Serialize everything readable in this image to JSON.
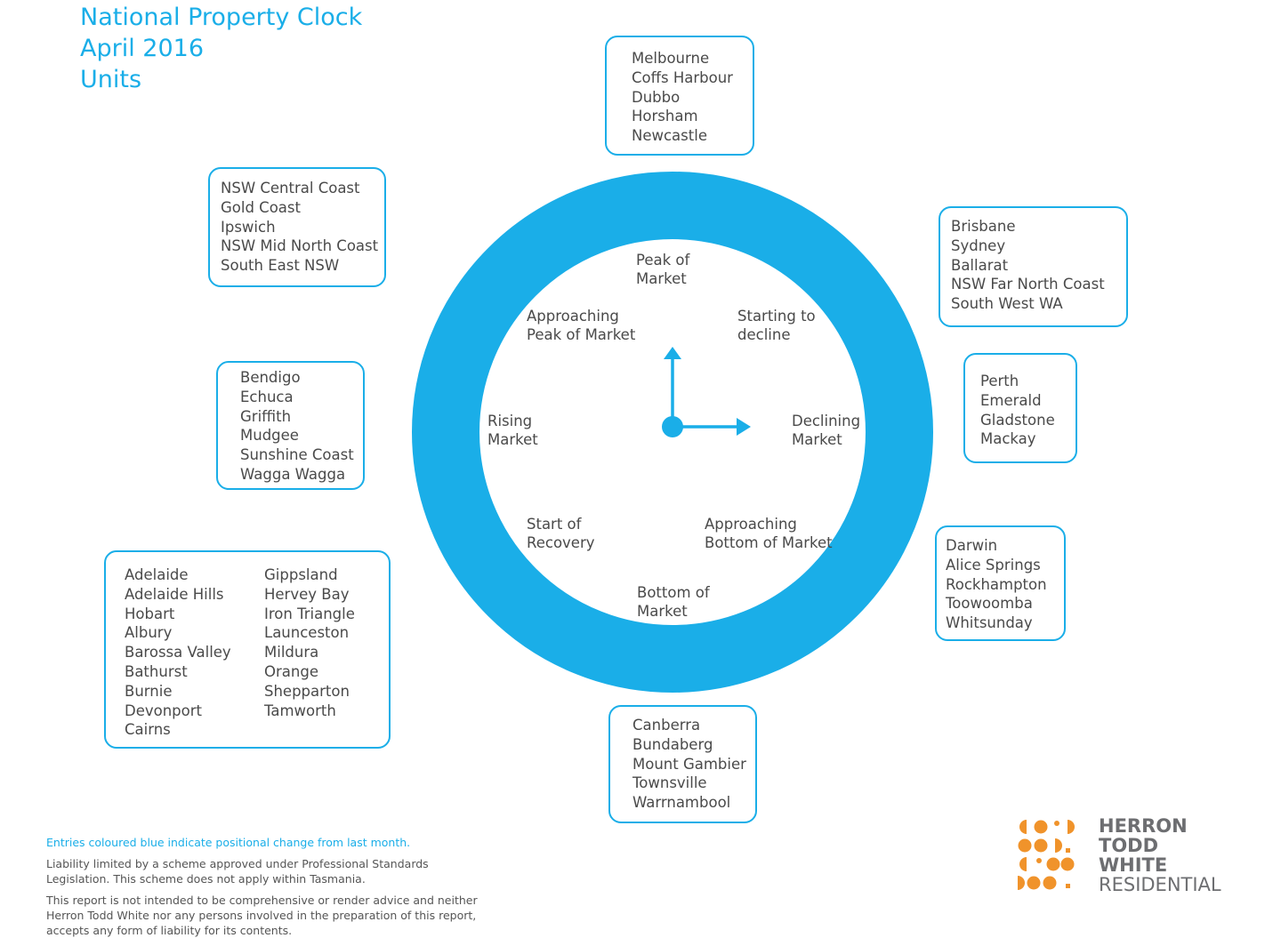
{
  "title": {
    "line1": "National Property Clock",
    "line2": "April 2016",
    "line3": "Units"
  },
  "phases": {
    "peak": [
      "Peak of",
      "Market"
    ],
    "starting_decline": [
      "Starting to",
      "decline"
    ],
    "declining": [
      "Declining",
      "Market"
    ],
    "approaching_bottom": [
      "Approaching",
      "Bottom of Market"
    ],
    "bottom": [
      "Bottom of",
      "Market"
    ],
    "start_recovery": [
      "Start of",
      "Recovery"
    ],
    "rising": [
      "Rising",
      "Market"
    ],
    "approaching_peak": [
      "Approaching",
      "Peak of Market"
    ]
  },
  "groups": {
    "peak": [
      "Melbourne",
      "Coffs Harbour",
      "Dubbo",
      "Horsham",
      "Newcastle"
    ],
    "starting_decline": [
      "Brisbane",
      "Sydney",
      "Ballarat",
      "NSW Far North Coast",
      "South West WA"
    ],
    "declining": [
      "Perth",
      "Emerald",
      "Gladstone",
      "Mackay"
    ],
    "approaching_bottom": [
      "Darwin",
      "Alice Springs",
      "Rockhampton",
      "Toowoomba",
      "Whitsunday"
    ],
    "bottom": [
      "Canberra",
      "Bundaberg",
      "Mount Gambier",
      "Townsville",
      "Warrnambool"
    ],
    "start_recovery_col1": [
      "Adelaide",
      "Adelaide Hills",
      "Hobart",
      "Albury",
      "Barossa Valley",
      "Bathurst",
      "Burnie",
      "Devonport",
      "Cairns"
    ],
    "start_recovery_col2": [
      "Gippsland",
      "Hervey Bay",
      "Iron Triangle",
      "Launceston",
      "Mildura",
      "Orange",
      "Shepparton",
      "Tamworth"
    ],
    "rising": [
      "Bendigo",
      "Echuca",
      "Griffith",
      "Mudgee",
      "Sunshine Coast",
      "Wagga Wagga"
    ],
    "approaching_peak": [
      "NSW Central Coast",
      "Gold Coast",
      "Ipswich",
      "NSW Mid North Coast",
      "South East NSW"
    ]
  },
  "footer": {
    "note": "Entries coloured blue indicate positional change from last month.",
    "liability1": "Liability limited by a scheme approved under Professional Standards",
    "liability2": "Legislation. This scheme does not apply within Tasmania.",
    "disclaimer1": "This report is not intended to be comprehensive or render advice and neither",
    "disclaimer2": "Herron Todd White nor any persons involved in the preparation of this report,",
    "disclaimer3": "accepts any form of liability for its contents."
  },
  "logo": {
    "line1": "HERRON",
    "line2": "TODD",
    "line3": "WHITE",
    "line4": "RESIDENTIAL"
  },
  "colors": {
    "accent": "#1aaee8",
    "logo_orange": "#f0932b",
    "logo_grey": "#6d6e71"
  }
}
